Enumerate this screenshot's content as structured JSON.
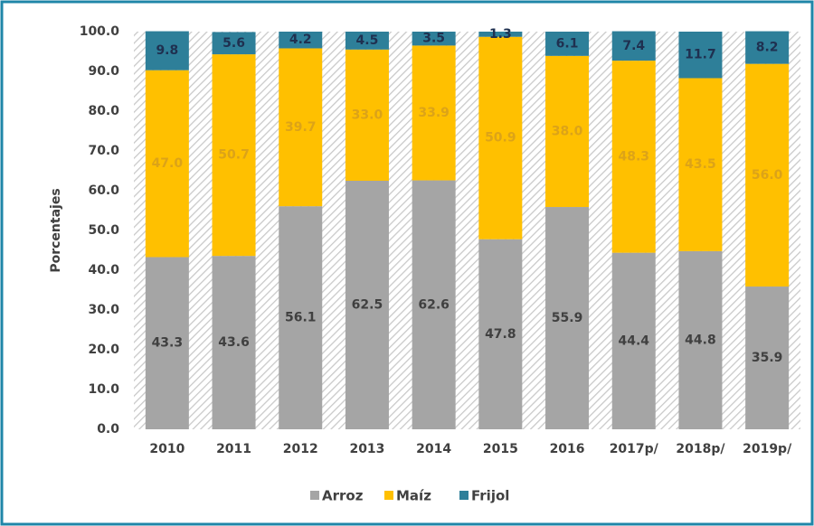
{
  "chart_data": {
    "type": "stacked-bar",
    "y_label": "Porcentajes",
    "categories": [
      "2010",
      "2011",
      "2012",
      "2013",
      "2014",
      "2015",
      "2016",
      "2017p/",
      "2018p/",
      "2019p/"
    ],
    "series": [
      {
        "name": "Arroz",
        "color": "#a5a5a5",
        "label_color": "#404040",
        "values": [
          43.3,
          43.6,
          56.1,
          62.5,
          62.6,
          47.8,
          55.9,
          44.4,
          44.8,
          35.9
        ],
        "value_labels": [
          "43.3",
          "43.6",
          "56.1",
          "62.5",
          "62.6",
          "47.8",
          "55.9",
          "44.4",
          "44.8",
          "35.9"
        ]
      },
      {
        "name": "Maíz",
        "color": "#ffc000",
        "label_color": "#dca318",
        "values": [
          47,
          50.7,
          39.7,
          33,
          33.9,
          50.9,
          38,
          48.3,
          43.5,
          56
        ],
        "value_labels": [
          "47.0",
          "50.7",
          "39.7",
          "33.0",
          "33.9",
          "50.9",
          "38.0",
          "48.3",
          "43.5",
          "56.0"
        ]
      },
      {
        "name": "Frijol",
        "color": "#2e7f99",
        "label_color": "#1f3050",
        "values": [
          9.8,
          5.6,
          4.2,
          4.5,
          3.5,
          1.3,
          6.1,
          7.4,
          11.7,
          8.2
        ],
        "value_labels": [
          "9.8",
          "5.6",
          "4.2",
          "4.5",
          "3.5",
          "1.3",
          "6.1",
          "7.4",
          "11.7",
          "8.2"
        ]
      }
    ],
    "ylim": [
      0,
      100
    ],
    "yticks": [
      {
        "value": 0,
        "label": "0.0"
      },
      {
        "value": 10,
        "label": "10.0"
      },
      {
        "value": 20,
        "label": "20.0"
      },
      {
        "value": 30,
        "label": "30.0"
      },
      {
        "value": 40,
        "label": "40.0"
      },
      {
        "value": 50,
        "label": "50.0"
      },
      {
        "value": 60,
        "label": "60.0"
      },
      {
        "value": 70,
        "label": "70.0"
      },
      {
        "value": 80,
        "label": "80.0"
      },
      {
        "value": 90,
        "label": "90.0"
      },
      {
        "value": 100,
        "label": "100.0"
      }
    ]
  }
}
